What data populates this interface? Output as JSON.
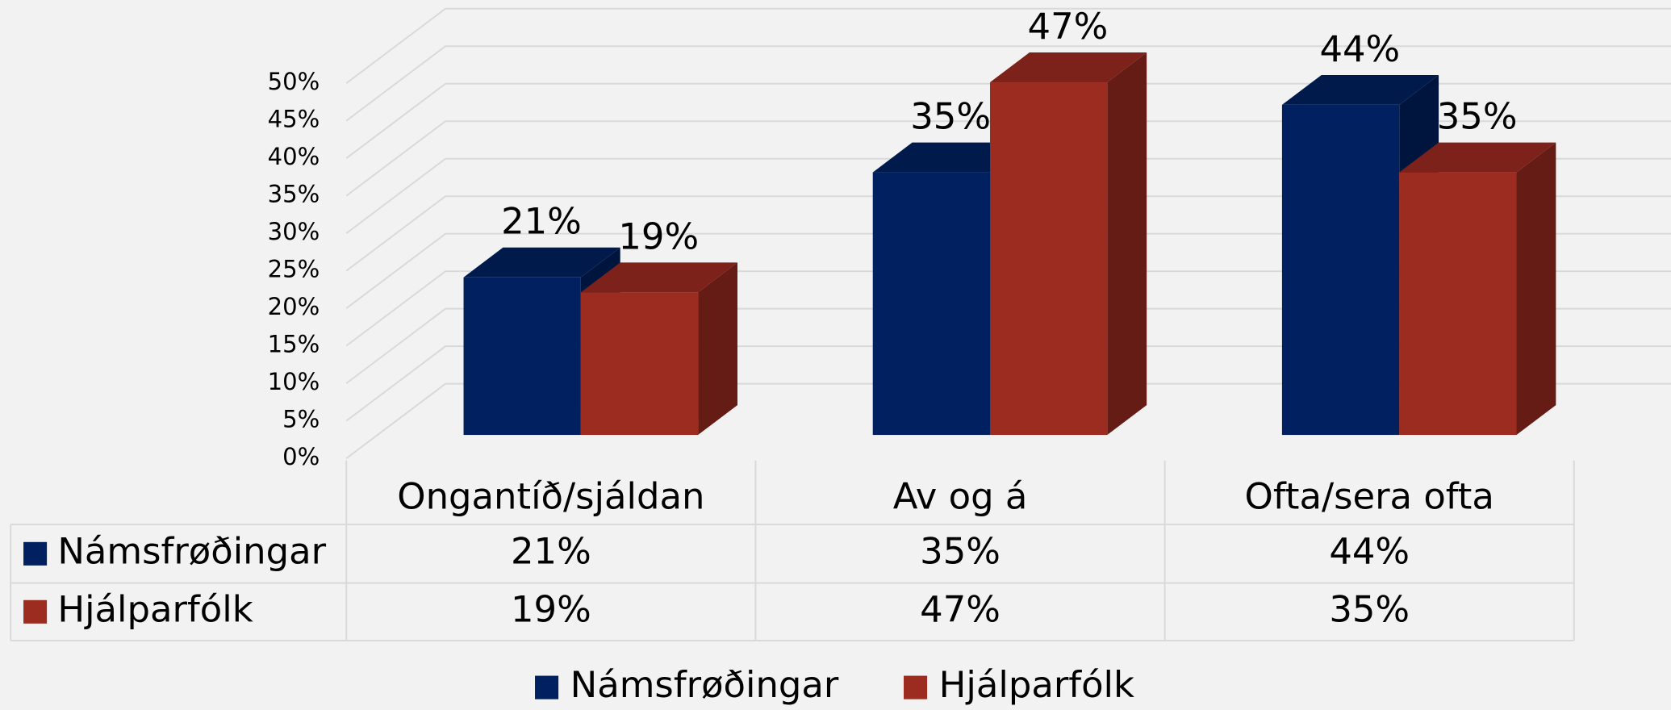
{
  "chart_data": {
    "type": "bar3d",
    "categories": [
      "Ongantíð/sjáldan",
      "Av og á",
      "Ofta/sera ofta"
    ],
    "series": [
      {
        "name": "Námsfrøðingar",
        "color": "#00205f",
        "values": [
          21,
          35,
          44
        ],
        "value_labels": [
          "21%",
          "35%",
          "44%"
        ]
      },
      {
        "name": "Hjálparfólk",
        "color": "#9c2b20",
        "values": [
          19,
          47,
          35
        ],
        "value_labels": [
          "19%",
          "47%",
          "35%"
        ]
      }
    ],
    "ylim": [
      0,
      50
    ],
    "yticks": [
      {
        "value": 0,
        "label": "0%"
      },
      {
        "value": 5,
        "label": "5%"
      },
      {
        "value": 10,
        "label": "10%"
      },
      {
        "value": 15,
        "label": "15%"
      },
      {
        "value": 20,
        "label": "20%"
      },
      {
        "value": 25,
        "label": "25%"
      },
      {
        "value": 30,
        "label": "30%"
      },
      {
        "value": 35,
        "label": "35%"
      },
      {
        "value": 40,
        "label": "40%"
      },
      {
        "value": 45,
        "label": "45%"
      },
      {
        "value": 50,
        "label": "50%"
      }
    ],
    "grid": true,
    "legend": "bottom",
    "data_table": true
  }
}
